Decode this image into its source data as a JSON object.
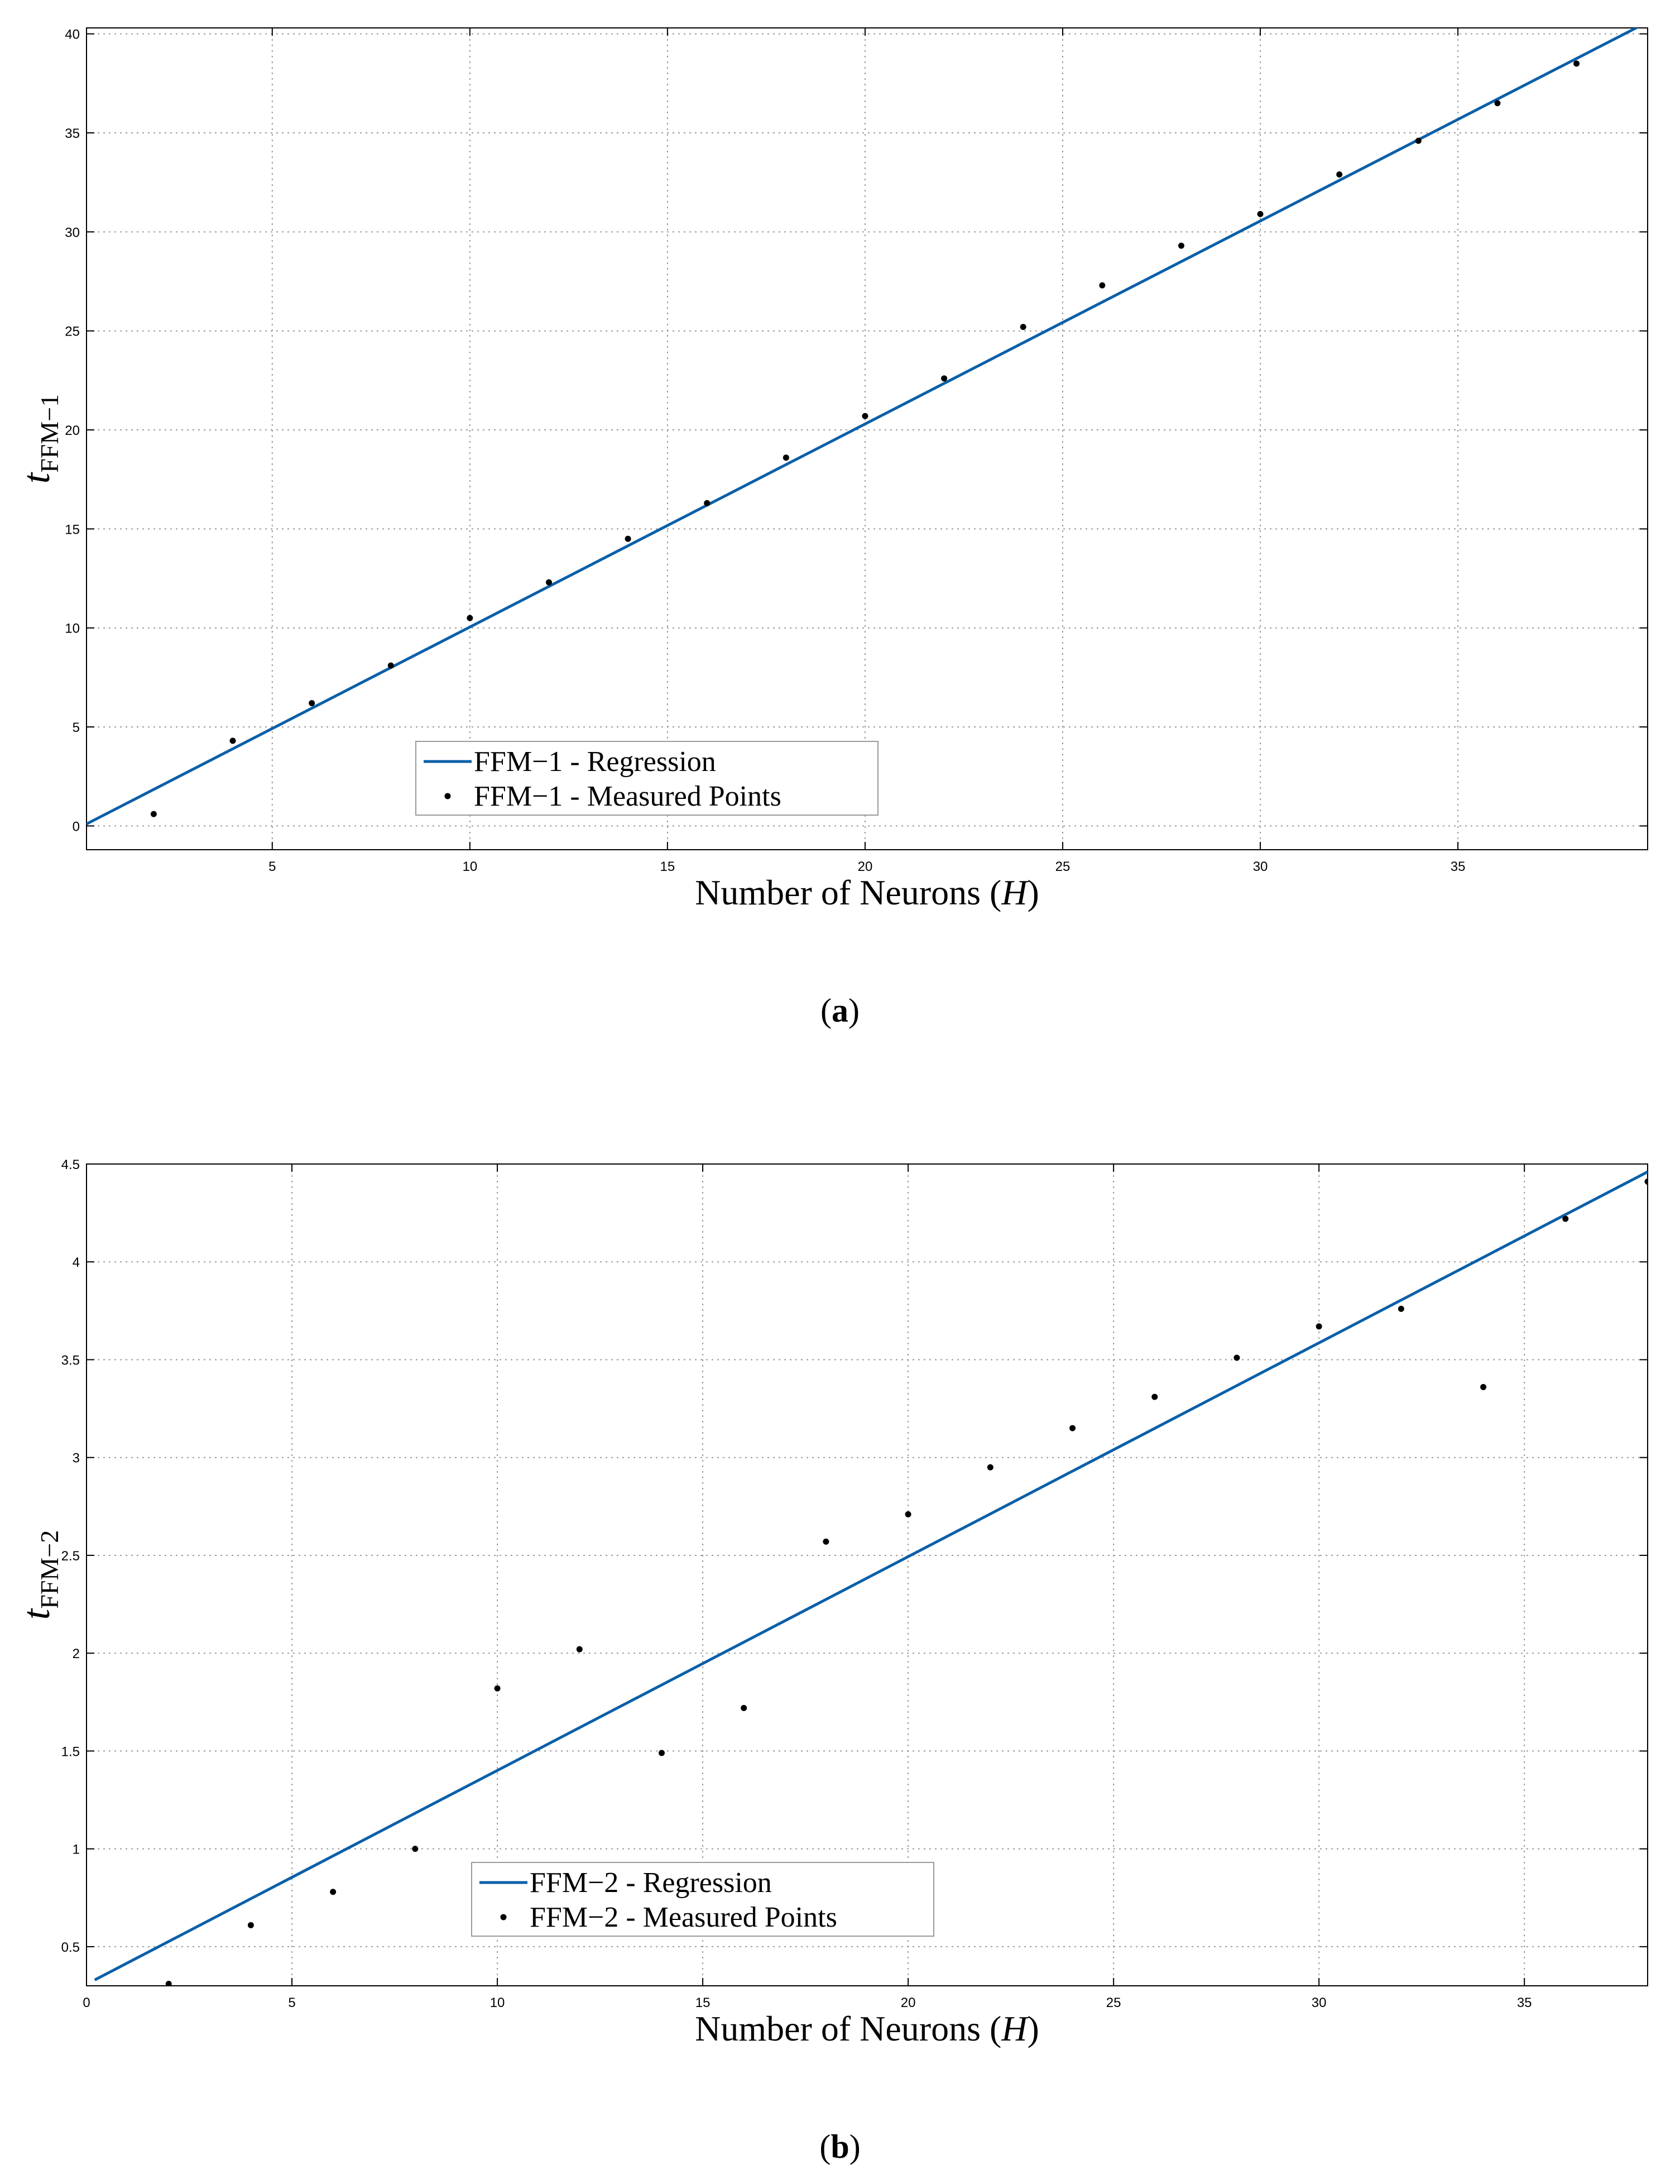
{
  "colors": {
    "regression": "#0b5fa8",
    "points": "#000000",
    "grid": "#9a9a9a"
  },
  "chart_data": [
    {
      "type": "scatter",
      "caption": "a",
      "xlabel": "Number of Neurons (H)",
      "xlabel_plain": "Number of Neurons (",
      "xlabel_var": "H",
      "xlabel_close": ")",
      "ylabel": "tFFM−1",
      "ylabel_var": "t",
      "ylabel_sub": "FFM−1",
      "xlim": [
        0.3,
        39.8
      ],
      "ylim": [
        -1.2,
        40.3
      ],
      "xticks": [
        5,
        10,
        15,
        20,
        25,
        30,
        35
      ],
      "yticks": [
        0,
        5,
        10,
        15,
        20,
        25,
        30,
        35,
        40
      ],
      "grid": true,
      "legend_position": "lower-center",
      "series": [
        {
          "name": "FFM−1 - Regression",
          "kind": "line",
          "x": [
            0.3,
            39.8
          ],
          "y": [
            0.1,
            40.6
          ]
        },
        {
          "name": "FFM−1 - Measured Points",
          "kind": "points",
          "x": [
            2,
            4,
            6,
            8,
            10,
            12,
            14,
            16,
            18,
            20,
            22,
            24,
            26,
            28,
            30,
            32,
            34,
            36,
            38
          ],
          "y": [
            0.6,
            4.3,
            6.2,
            8.1,
            10.5,
            12.3,
            14.5,
            16.3,
            18.6,
            20.7,
            22.6,
            25.2,
            27.3,
            29.3,
            30.9,
            32.9,
            34.6,
            36.5,
            38.5
          ]
        }
      ]
    },
    {
      "type": "scatter",
      "caption": "b",
      "xlabel": "Number of Neurons (H)",
      "xlabel_plain": "Number of Neurons (",
      "xlabel_var": "H",
      "xlabel_close": ")",
      "ylabel": "tFFM−2",
      "ylabel_var": "t",
      "ylabel_sub": "FFM−2",
      "xlim": [
        0,
        38
      ],
      "ylim": [
        0.3,
        4.5
      ],
      "xticks": [
        0,
        5,
        10,
        15,
        20,
        25,
        30,
        35
      ],
      "yticks": [
        0.5,
        1,
        1.5,
        2,
        2.5,
        3,
        3.5,
        4,
        4.5
      ],
      "grid": true,
      "legend_position": "lower-center",
      "series": [
        {
          "name": "FFM−2 - Regression",
          "kind": "line",
          "x": [
            0.2,
            38
          ],
          "y": [
            0.33,
            4.46
          ]
        },
        {
          "name": "FFM−2 - Measured Points",
          "kind": "points",
          "x": [
            2,
            4,
            6,
            8,
            10,
            12,
            14,
            16,
            18,
            20,
            22,
            24,
            26,
            28,
            30,
            32,
            34,
            36,
            38
          ],
          "y": [
            0.31,
            0.61,
            0.78,
            1.0,
            1.82,
            2.02,
            1.49,
            1.72,
            2.57,
            2.71,
            2.95,
            3.15,
            3.31,
            3.51,
            3.67,
            3.76,
            3.36,
            4.22,
            4.41
          ]
        }
      ]
    }
  ]
}
